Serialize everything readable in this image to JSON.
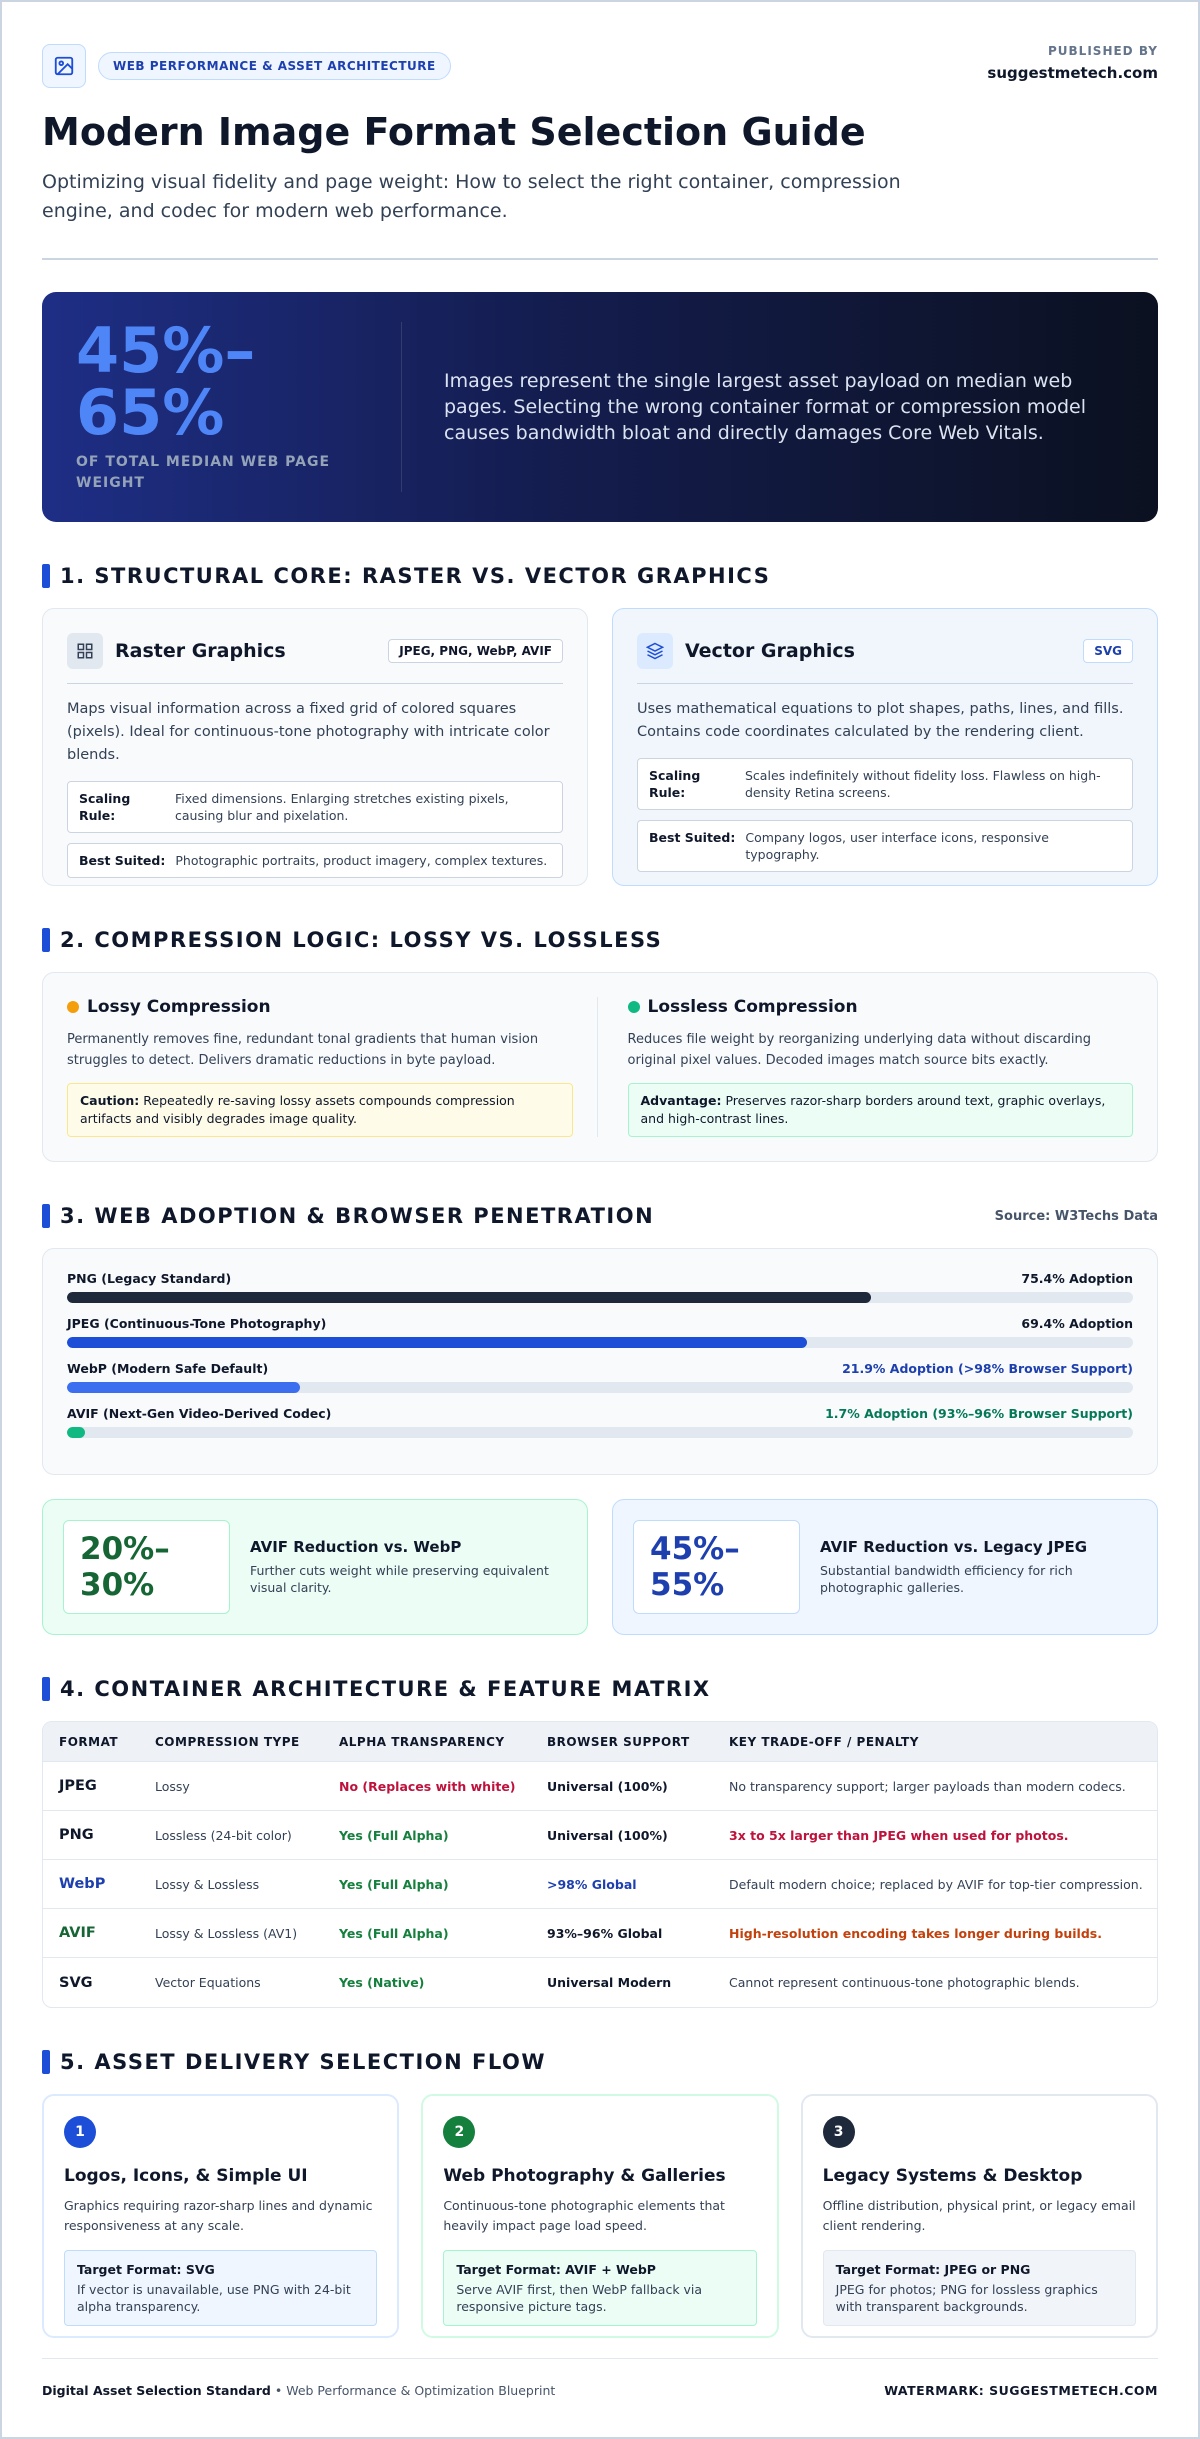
{
  "header": {
    "badge": "WEB PERFORMANCE & ASSET ARCHITECTURE",
    "published_label": "PUBLISHED BY",
    "published_by": "suggestmetech.com",
    "title": "Modern Image Format Selection Guide",
    "subtitle": "Optimizing visual fidelity and page weight: How to select the right container, compression engine, and codec for modern web performance."
  },
  "hero": {
    "stat": "45%–65%",
    "stat_caption": "OF TOTAL MEDIAN WEB PAGE WEIGHT",
    "text": "Images represent the single largest asset payload on median web pages. Selecting the wrong container format or compression model causes bandwidth bloat and directly damages Core Web Vitals."
  },
  "structural": {
    "heading": "1. STRUCTURAL CORE: RASTER VS. VECTOR GRAPHICS",
    "cards": [
      {
        "title": "Raster Graphics",
        "tag": "JPEG, PNG, WebP, AVIF",
        "description": "Maps visual information across a fixed grid of colored squares (pixels). Ideal for continuous-tone photography with intricate color blends.",
        "rows": [
          {
            "label": "Scaling Rule:",
            "text": "Fixed dimensions. Enlarging stretches existing pixels, causing blur and pixelation."
          },
          {
            "label": "Best Suited:",
            "text": "Photographic portraits, product imagery, complex textures."
          }
        ]
      },
      {
        "title": "Vector Graphics",
        "tag": "SVG",
        "description": "Uses mathematical equations to plot shapes, paths, lines, and fills. Contains code coordinates calculated by the rendering client.",
        "rows": [
          {
            "label": "Scaling Rule:",
            "text": "Scales indefinitely without fidelity loss. Flawless on high-density Retina screens."
          },
          {
            "label": "Best Suited:",
            "text": "Company logos, user interface icons, responsive typography."
          }
        ]
      }
    ]
  },
  "compression": {
    "heading": "2. COMPRESSION LOGIC: LOSSY VS. LOSSLESS",
    "cards": [
      {
        "title": "Lossy Compression",
        "description": "Permanently removes fine, redundant tonal gradients that human vision struggles to detect. Delivers dramatic reductions in byte payload.",
        "note_label": "Caution:",
        "note_text": "Repeatedly re-saving lossy assets compounds compression artifacts and visibly degrades image quality."
      },
      {
        "title": "Lossless Compression",
        "description": "Reduces file weight by reorganizing underlying data without discarding original pixel values. Decoded images match source bits exactly.",
        "note_label": "Advantage:",
        "note_text": "Preserves razor-sharp borders around text, graphic overlays, and high-contrast lines."
      }
    ]
  },
  "adoption": {
    "heading": "3. WEB ADOPTION & BROWSER PENETRATION",
    "source": "Source: W3Techs Data",
    "rows": [
      {
        "label": "PNG (Legacy Standard)",
        "value": 75.4,
        "value_label": "75.4% Adoption",
        "color": "#1e293b",
        "label_color": "#0f172a"
      },
      {
        "label": "JPEG (Continuous-Tone Photography)",
        "value": 69.4,
        "value_label": "69.4% Adoption",
        "color": "#1d4ed8",
        "label_color": "#0f172a"
      },
      {
        "label": "WebP (Modern Safe Default)",
        "value": 21.9,
        "value_label": "21.9% Adoption (>98% Browser Support)",
        "color": "#3b6ff0",
        "label_color": "#1e40af"
      },
      {
        "label": "AVIF (Next-Gen Video-Derived Codec)",
        "value": 1.7,
        "value_label": "1.7% Adoption (93%–96% Browser Support)",
        "color": "#10b981",
        "label_color": "#047857"
      }
    ],
    "stats": [
      {
        "stat": "20%–30%",
        "title": "AVIF Reduction vs. WebP",
        "text": "Further cuts weight while preserving equivalent visual clarity."
      },
      {
        "stat": "45%–55%",
        "title": "AVIF Reduction vs. Legacy JPEG",
        "text": "Substantial bandwidth efficiency for rich photographic galleries."
      }
    ]
  },
  "matrix": {
    "heading": "4. CONTAINER ARCHITECTURE & FEATURE MATRIX",
    "columns": [
      "FORMAT",
      "COMPRESSION TYPE",
      "ALPHA TRANSPARENCY",
      "BROWSER SUPPORT",
      "KEY TRADE-OFF / PENALTY"
    ],
    "rows": [
      [
        "JPEG",
        "Lossy",
        "No (Replaces with white)",
        "Universal (100%)",
        "No transparency support; larger payloads than modern codecs."
      ],
      [
        "PNG",
        "Lossless (24-bit color)",
        "Yes (Full Alpha)",
        "Universal (100%)",
        "3x to 5x larger than JPEG when used for photos."
      ],
      [
        "WebP",
        "Lossy & Lossless",
        "Yes (Full Alpha)",
        ">98% Global",
        "Default modern choice; replaced by AVIF for top-tier compression."
      ],
      [
        "AVIF",
        "Lossy & Lossless (AV1)",
        "Yes (Full Alpha)",
        "93%–96% Global",
        "High-resolution encoding takes longer during builds."
      ],
      [
        "SVG",
        "Vector Equations",
        "Yes (Native)",
        "Universal Modern",
        "Cannot represent continuous-tone photographic blends."
      ]
    ]
  },
  "flow": {
    "heading": "5. ASSET DELIVERY SELECTION FLOW",
    "cards": [
      {
        "step": 1,
        "title": "Logos, Icons, & Simple UI",
        "text": "Graphics requiring razor-sharp lines and dynamic responsiveness at any scale.",
        "target": "Target Format: SVG",
        "target_text": "If vector is unavailable, use PNG with 24-bit alpha transparency."
      },
      {
        "step": 2,
        "title": "Web Photography & Galleries",
        "text": "Continuous-tone photographic elements that heavily impact page load speed.",
        "target": "Target Format: AVIF + WebP",
        "target_text": "Serve AVIF first, then WebP fallback via responsive picture tags."
      },
      {
        "step": 3,
        "title": "Legacy Systems & Desktop",
        "text": "Offline distribution, physical print, or legacy email client rendering.",
        "target": "Target Format: JPEG or PNG",
        "target_text": "JPEG for photos; PNG for lossless graphics with transparent backgrounds."
      }
    ]
  },
  "footer": {
    "left_bold": "Digital Asset Selection Standard",
    "left_text": "• Web Performance & Optimization Blueprint",
    "watermark": "WATERMARK: SUGGESTMETECH.COM"
  }
}
